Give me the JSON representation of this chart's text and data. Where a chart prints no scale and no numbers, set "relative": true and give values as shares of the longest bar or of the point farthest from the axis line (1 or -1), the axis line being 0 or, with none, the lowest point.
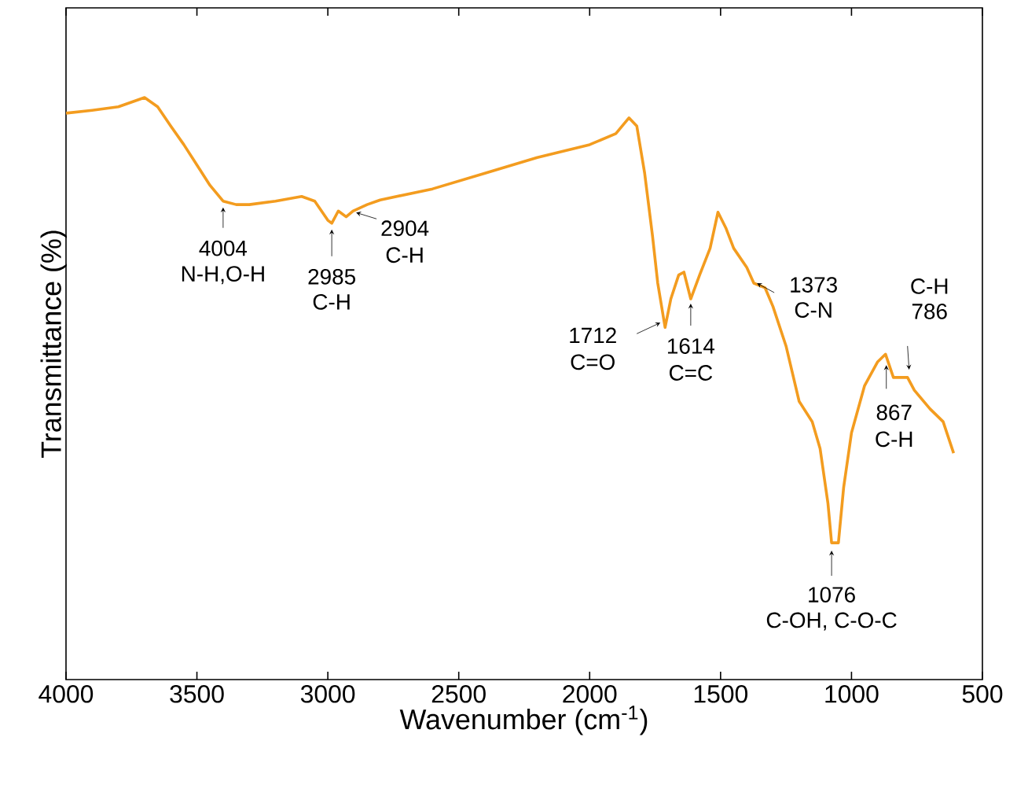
{
  "chart_data": {
    "type": "line",
    "relative": true,
    "xlabel": "Wavenumber (cm$^{-1}$)",
    "ylabel": "Transmittance (%)",
    "xlim": [
      4000,
      500
    ],
    "xticks": [
      4000,
      3500,
      3000,
      2500,
      2000,
      1500,
      1000,
      500
    ],
    "series": [
      {
        "color": "#f39c1f",
        "x": [
          4000,
          3900,
          3800,
          3700,
          3650,
          3600,
          3550,
          3500,
          3450,
          3400,
          3350,
          3300,
          3200,
          3100,
          3050,
          3000,
          2985,
          2960,
          2930,
          2904,
          2850,
          2800,
          2600,
          2400,
          2200,
          2000,
          1900,
          1850,
          1820,
          1790,
          1760,
          1740,
          1712,
          1690,
          1660,
          1640,
          1614,
          1580,
          1540,
          1510,
          1480,
          1450,
          1400,
          1373,
          1330,
          1300,
          1250,
          1200,
          1150,
          1120,
          1090,
          1076,
          1050,
          1030,
          1000,
          950,
          900,
          870,
          840,
          786,
          760,
          700,
          650,
          610
        ],
        "values": [
          0.973,
          0.978,
          0.984,
          1.0,
          0.984,
          0.951,
          0.919,
          0.884,
          0.849,
          0.822,
          0.816,
          0.816,
          0.822,
          0.83,
          0.822,
          0.789,
          0.784,
          0.805,
          0.795,
          0.805,
          0.816,
          0.824,
          0.843,
          0.87,
          0.897,
          0.919,
          0.938,
          0.965,
          0.951,
          0.87,
          0.762,
          0.681,
          0.605,
          0.654,
          0.695,
          0.7,
          0.654,
          0.695,
          0.741,
          0.803,
          0.776,
          0.741,
          0.708,
          0.681,
          0.673,
          0.641,
          0.573,
          0.478,
          0.443,
          0.397,
          0.303,
          0.235,
          0.235,
          0.33,
          0.424,
          0.505,
          0.546,
          0.559,
          0.519,
          0.519,
          0.497,
          0.465,
          0.443,
          0.389
        ]
      }
    ],
    "annotations": [
      {
        "text": "4004",
        "x": 3400,
        "y": 0.822
      },
      "N-H,O-H",
      {
        "text": "2985",
        "x": 2985,
        "y": 0.784
      },
      "C-H",
      {
        "text": "2904",
        "x": 2904,
        "y": 0.805
      },
      "C-H",
      {
        "text": "1712",
        "x": 1712,
        "y": 0.605
      },
      "C=O",
      {
        "text": "1614",
        "x": 1614,
        "y": 0.654
      },
      "C=C",
      {
        "text": "1373",
        "x": 1373,
        "y": 0.681
      },
      "C-N",
      {
        "text": "867",
        "x": 867,
        "y": 0.559
      },
      "C-H",
      "C-H",
      {
        "text": "786",
        "x": 786,
        "y": 0.519
      },
      {
        "text": "1076",
        "x": 1076,
        "y": 0.235
      },
      "C-OH, C-O-C"
    ]
  }
}
